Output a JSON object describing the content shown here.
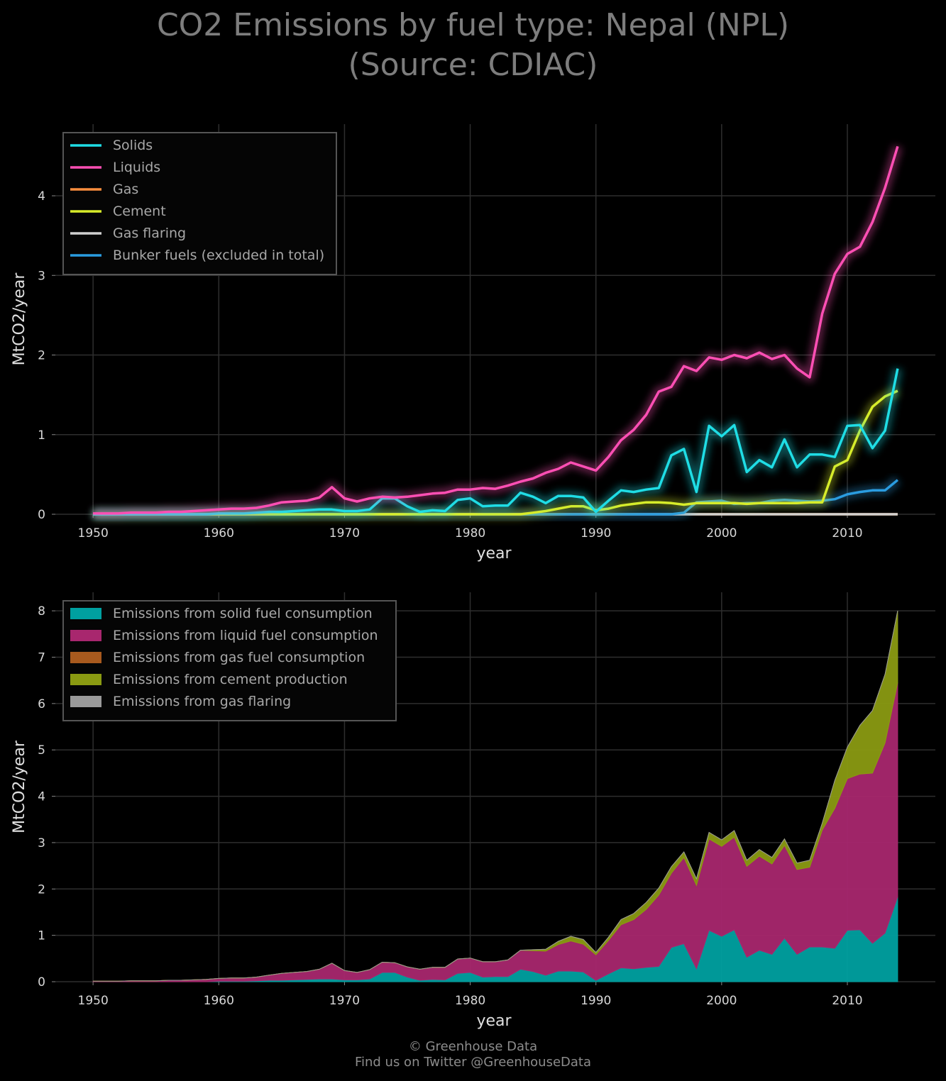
{
  "title_line1": "CO2 Emissions by fuel type: Nepal (NPL)",
  "title_line2": "(Source: CDIAC)",
  "footer_line1": "© Greenhouse Data",
  "footer_line2": "Find us on Twitter @GreenhouseData",
  "colors": {
    "background": "#000000",
    "grid": "#2e2e2e",
    "solids": "#1fdde5",
    "liquids": "#ff4fb4",
    "gas": "#ff8f3f",
    "cement": "#d7ec2a",
    "gas_flaring": "#d0d0d0",
    "bunker": "#2a9ce0",
    "area_solid": "#00a0a0",
    "area_liquid": "#a8276e",
    "area_gas": "#a85a1e",
    "area_cement": "#8a9a12",
    "area_flaring": "#9a9a9a"
  },
  "chart_data": [
    {
      "type": "line",
      "xlabel": "year",
      "ylabel": "MtCO2/year",
      "xlim": [
        1947,
        2017
      ],
      "ylim": [
        0,
        4.9
      ],
      "xticks": [
        1950,
        1960,
        1970,
        1980,
        1990,
        2000,
        2010
      ],
      "yticks": [
        0,
        1,
        2,
        3,
        4
      ],
      "grid": true,
      "legend_position": "top-left",
      "x": [
        1950,
        1951,
        1952,
        1953,
        1954,
        1955,
        1956,
        1957,
        1958,
        1959,
        1960,
        1961,
        1962,
        1963,
        1964,
        1965,
        1966,
        1967,
        1968,
        1969,
        1970,
        1971,
        1972,
        1973,
        1974,
        1975,
        1976,
        1977,
        1978,
        1979,
        1980,
        1981,
        1982,
        1983,
        1984,
        1985,
        1986,
        1987,
        1988,
        1989,
        1990,
        1991,
        1992,
        1993,
        1994,
        1995,
        1996,
        1997,
        1998,
        1999,
        2000,
        2001,
        2002,
        2003,
        2004,
        2005,
        2006,
        2007,
        2008,
        2009,
        2010,
        2011,
        2012,
        2013,
        2014
      ],
      "series": [
        {
          "name": "Solids",
          "color_key": "solids",
          "values": [
            0,
            0,
            0,
            0,
            0,
            0,
            0,
            0,
            0,
            0,
            0.01,
            0.01,
            0.01,
            0.02,
            0.03,
            0.03,
            0.04,
            0.05,
            0.06,
            0.06,
            0.04,
            0.04,
            0.06,
            0.2,
            0.2,
            0.1,
            0.03,
            0.05,
            0.04,
            0.18,
            0.2,
            0.1,
            0.11,
            0.11,
            0.27,
            0.22,
            0.14,
            0.23,
            0.23,
            0.21,
            0.03,
            0.17,
            0.3,
            0.28,
            0.31,
            0.33,
            0.74,
            0.82,
            0.28,
            1.11,
            0.98,
            1.12,
            0.53,
            0.68,
            0.59,
            0.94,
            0.59,
            0.75,
            0.75,
            0.72,
            1.11,
            1.12,
            0.83,
            1.05,
            1.83
          ]
        },
        {
          "name": "Liquids",
          "color_key": "liquids",
          "values": [
            0.01,
            0.01,
            0.01,
            0.02,
            0.02,
            0.02,
            0.03,
            0.03,
            0.04,
            0.05,
            0.06,
            0.07,
            0.07,
            0.08,
            0.11,
            0.15,
            0.16,
            0.17,
            0.21,
            0.34,
            0.2,
            0.16,
            0.2,
            0.22,
            0.21,
            0.22,
            0.24,
            0.26,
            0.27,
            0.31,
            0.31,
            0.33,
            0.32,
            0.36,
            0.41,
            0.45,
            0.52,
            0.57,
            0.65,
            0.6,
            0.55,
            0.72,
            0.93,
            1.06,
            1.25,
            1.54,
            1.6,
            1.86,
            1.8,
            1.97,
            1.94,
            2.0,
            1.96,
            2.03,
            1.95,
            2.0,
            1.83,
            1.72,
            2.52,
            3.02,
            3.27,
            3.36,
            3.67,
            4.1,
            4.62
          ]
        },
        {
          "name": "Gas",
          "color_key": "gas",
          "values": [
            0,
            0,
            0,
            0,
            0,
            0,
            0,
            0,
            0,
            0,
            0,
            0,
            0,
            0,
            0,
            0,
            0,
            0,
            0,
            0,
            0,
            0,
            0,
            0,
            0,
            0,
            0,
            0,
            0,
            0,
            0,
            0,
            0,
            0,
            0,
            0,
            0,
            0,
            0,
            0,
            0,
            0,
            0,
            0,
            0,
            0,
            0,
            0,
            0,
            0,
            0,
            0,
            0,
            0,
            0,
            0,
            0,
            0,
            0,
            0,
            0,
            0,
            0,
            0,
            0
          ]
        },
        {
          "name": "Cement",
          "color_key": "cement",
          "values": [
            0,
            0,
            0,
            0,
            0,
            0,
            0,
            0,
            0,
            0,
            0,
            0,
            0,
            0,
            0,
            0,
            0,
            0,
            0,
            0,
            0,
            0,
            0,
            0,
            0,
            0,
            0,
            0,
            0,
            0,
            0,
            0,
            0,
            0,
            0,
            0.02,
            0.04,
            0.07,
            0.1,
            0.1,
            0.05,
            0.07,
            0.11,
            0.13,
            0.15,
            0.15,
            0.14,
            0.12,
            0.14,
            0.14,
            0.14,
            0.14,
            0.13,
            0.14,
            0.14,
            0.14,
            0.14,
            0.15,
            0.15,
            0.6,
            0.68,
            1.05,
            1.35,
            1.48,
            1.55
          ]
        },
        {
          "name": "Gas flaring",
          "color_key": "gas_flaring",
          "values": [
            0,
            0,
            0,
            0,
            0,
            0,
            0,
            0,
            0,
            0,
            0,
            0,
            0,
            0,
            0,
            0,
            0,
            0,
            0,
            0,
            0,
            0,
            0,
            0,
            0,
            0,
            0,
            0,
            0,
            0,
            0,
            0,
            0,
            0,
            0,
            0,
            0,
            0,
            0,
            0,
            0,
            0,
            0,
            0,
            0,
            0,
            0,
            0,
            0,
            0,
            0,
            0,
            0,
            0,
            0,
            0,
            0,
            0,
            0,
            0,
            0,
            0,
            0,
            0,
            0
          ]
        },
        {
          "name": "Bunker fuels (excluded in total)",
          "color_key": "bunker",
          "values": [
            0,
            0,
            0,
            0,
            0,
            0,
            0,
            0,
            0,
            0,
            0,
            0,
            0,
            0,
            0,
            0,
            0,
            0,
            0,
            0,
            0,
            0,
            0,
            0,
            0,
            0,
            0,
            0,
            0,
            0,
            0,
            0,
            0,
            0,
            0,
            0,
            0,
            0,
            0,
            0,
            0,
            0,
            0,
            0,
            0,
            0,
            0,
            0.02,
            0.15,
            0.16,
            0.17,
            0.13,
            0.14,
            0.14,
            0.17,
            0.18,
            0.17,
            0.16,
            0.17,
            0.19,
            0.25,
            0.28,
            0.3,
            0.3,
            0.43
          ]
        }
      ]
    },
    {
      "type": "area",
      "stacked": true,
      "xlabel": "year",
      "ylabel": "MtCO2/year",
      "xlim": [
        1947,
        2017
      ],
      "ylim": [
        0,
        8.4
      ],
      "xticks": [
        1950,
        1960,
        1970,
        1980,
        1990,
        2000,
        2010
      ],
      "yticks": [
        0,
        1,
        2,
        3,
        4,
        5,
        6,
        7,
        8
      ],
      "grid": true,
      "legend_position": "top-left",
      "series_ref": "same values as the line chart, stacked",
      "series": [
        {
          "name": "Emissions from solid fuel consumption",
          "color_key": "area_solid",
          "source": "Solids"
        },
        {
          "name": "Emissions from liquid fuel consumption",
          "color_key": "area_liquid",
          "source": "Liquids"
        },
        {
          "name": "Emissions from gas fuel consumption",
          "color_key": "area_gas",
          "source": "Gas"
        },
        {
          "name": "Emissions from cement production",
          "color_key": "area_cement",
          "source": "Cement"
        },
        {
          "name": "Emissions from gas flaring",
          "color_key": "area_flaring",
          "source": "Gas flaring"
        }
      ]
    }
  ]
}
